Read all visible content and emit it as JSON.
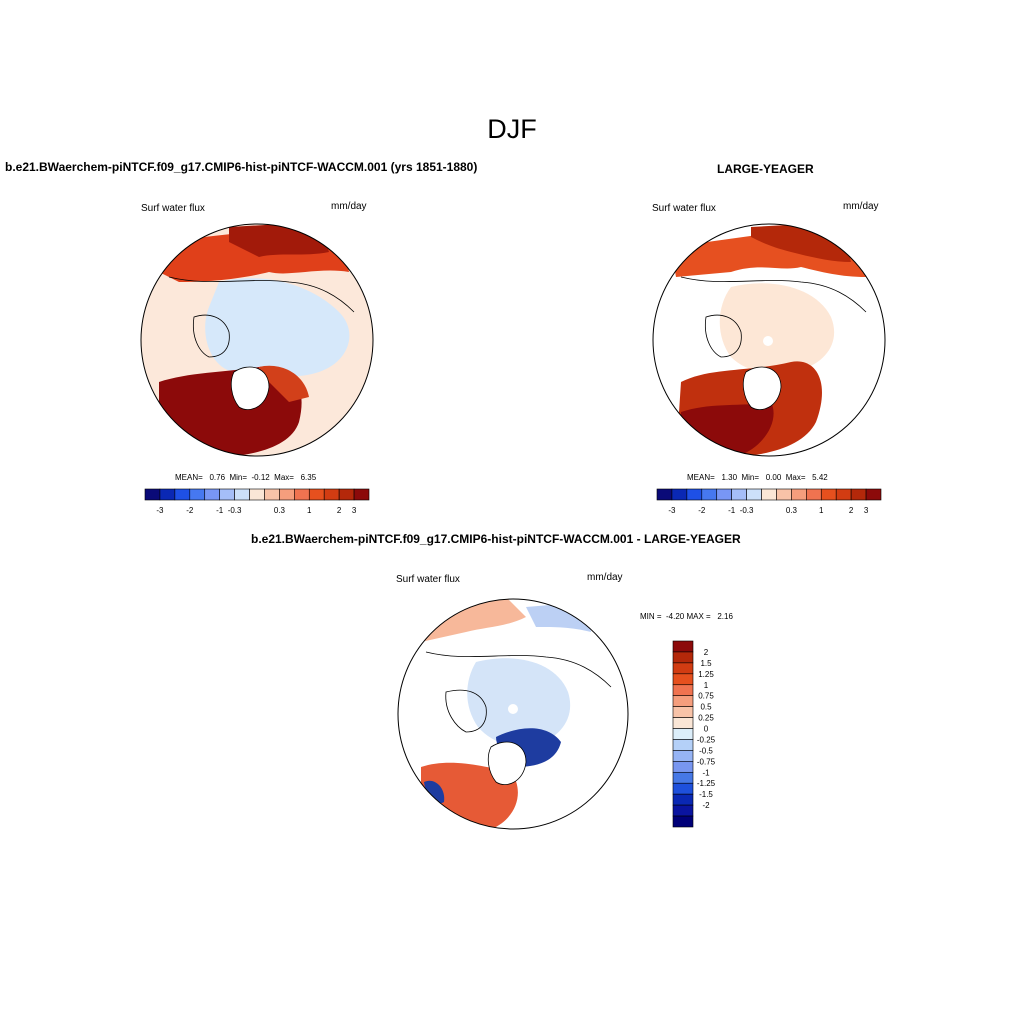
{
  "main_title": "DJF",
  "panel1": {
    "title": "b.e21.BWaerchem-piNTCF.f09_g17.CMIP6-hist-piNTCF-WACCM.001 (yrs 1851-1880)",
    "variable": "Surf water flux",
    "units": "mm/day",
    "stats": "MEAN=   0.76  Min=  -0.12  Max=   6.35"
  },
  "panel2": {
    "title": "LARGE-YEAGER",
    "variable": "Surf water flux",
    "units": "mm/day",
    "stats": "MEAN=   1.30  Min=   0.00  Max=   5.42"
  },
  "panel3": {
    "title": "b.e21.BWaerchem-piNTCF.f09_g17.CMIP6-hist-piNTCF-WACCM.001 - LARGE-YEAGER",
    "variable": "Surf water flux",
    "units": "mm/day",
    "stats": "MIN =  -4.20 MAX =   2.16"
  },
  "colorbar_horizontal": {
    "colors": [
      "#0a0a78",
      "#0a28b4",
      "#1e50e6",
      "#4678f0",
      "#7896f5",
      "#a5bef8",
      "#cce0fa",
      "#fae6d6",
      "#f8c3a8",
      "#f59e7d",
      "#f07350",
      "#e6501e",
      "#d23c12",
      "#b4280a",
      "#8c0a0a"
    ],
    "labels": [
      "-3",
      "-2",
      "-1",
      "-0.3",
      "0.3",
      "1",
      "2",
      "3"
    ]
  },
  "colorbar_vertical": {
    "colors": [
      "#8c0a0a",
      "#b4280a",
      "#d23c12",
      "#e6501e",
      "#f07350",
      "#f59e7d",
      "#f8c3a8",
      "#fae6d6",
      "#dceefa",
      "#b4d0f8",
      "#96b4f5",
      "#7896f0",
      "#4678e6",
      "#1e50dc",
      "#0a28b4",
      "#0a14a0",
      "#000078"
    ],
    "labels": [
      "2",
      "1.5",
      "1.25",
      "1",
      "0.75",
      "0.5",
      "0.25",
      "0",
      "-0.25",
      "-0.5",
      "-0.75",
      "-1",
      "-1.25",
      "-1.5",
      "-2"
    ]
  }
}
